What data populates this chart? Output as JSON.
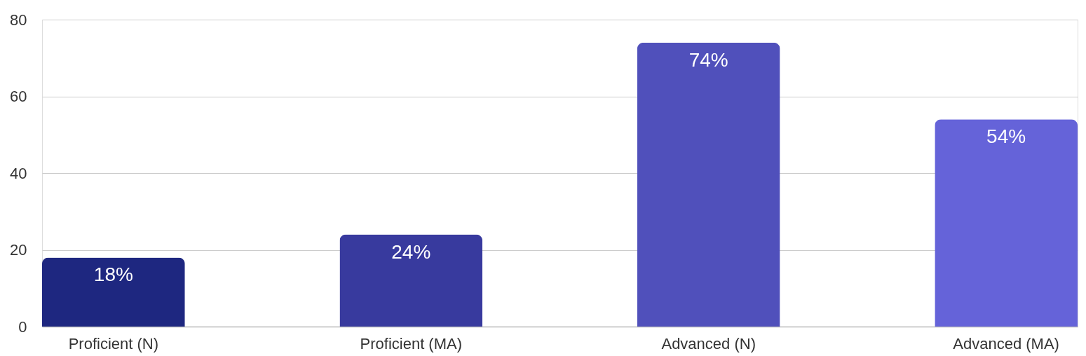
{
  "chart_data": {
    "type": "bar",
    "categories": [
      "Proficient (N)",
      "Proficient (MA)",
      "Advanced (N)",
      "Advanced (MA)"
    ],
    "values": [
      18,
      24,
      74,
      54
    ],
    "colors": [
      "#1e2780",
      "#383a9e",
      "#5050bb",
      "#6563d9"
    ],
    "value_labels": [
      "18%",
      "24%",
      "74%",
      "54%"
    ],
    "ylim": [
      0,
      80
    ],
    "yticks": [
      0,
      20,
      40,
      60,
      80
    ],
    "grid": "y",
    "legend": false
  }
}
